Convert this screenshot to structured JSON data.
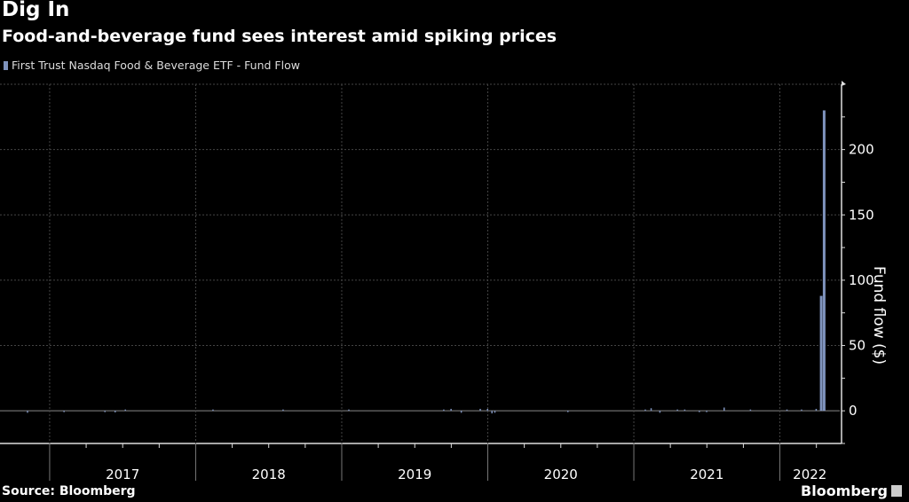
{
  "chart_data": {
    "type": "bar",
    "title": "Dig In",
    "subtitle": "Food-and-beverage fund sees interest amid spiking prices",
    "legend": [
      {
        "name": "First Trust Nasdaq Food & Beverage ETF - Fund Flow",
        "color": "#7f93bd"
      }
    ],
    "ylabel": "Fund flow ($)",
    "xlabel": "",
    "ylim": [
      -25,
      250
    ],
    "yticks": [
      0,
      50,
      100,
      150,
      200
    ],
    "xlim": [
      2016.66,
      2022.41
    ],
    "xticks": [
      "2017",
      "2018",
      "2019",
      "2020",
      "2021",
      "2022"
    ],
    "grid": true,
    "series": [
      {
        "name": "Fund Flow",
        "x": [
          2016.85,
          2017.1,
          2017.38,
          2017.45,
          2017.52,
          2018.12,
          2018.6,
          2019.05,
          2019.7,
          2019.75,
          2019.82,
          2019.95,
          2020.0,
          2020.03,
          2020.05,
          2020.55,
          2021.08,
          2021.12,
          2021.18,
          2021.3,
          2021.35,
          2021.45,
          2021.5,
          2021.62,
          2021.8,
          2022.05,
          2022.15,
          2022.25,
          2022.28,
          2022.3
        ],
        "values": [
          -1.5,
          -1,
          -1,
          -1.2,
          1,
          1,
          1,
          1,
          1,
          1.5,
          -1.5,
          1.5,
          1.5,
          -2,
          -1.5,
          -1,
          1,
          2,
          -1.5,
          1,
          1,
          -1,
          -1,
          2.5,
          1,
          1,
          1,
          1.5,
          88,
          230
        ]
      }
    ]
  },
  "source": "Source: Bloomberg",
  "brand": "Bloomberg"
}
